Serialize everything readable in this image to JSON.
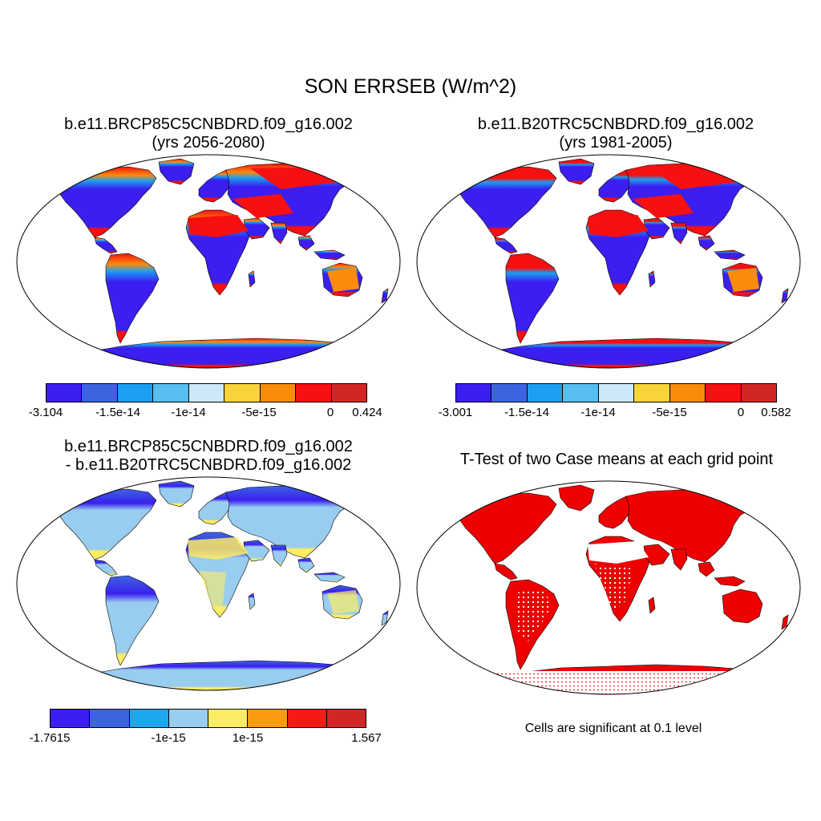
{
  "title": "SON ERRSEB (W/m^2)",
  "panels": {
    "p1": {
      "title_line1": "b.e11.BRCP85C5CNBDRD.f09_g16.002",
      "title_line2": "(yrs 2056-2080)",
      "colorbar": {
        "colors": [
          "#3a1ff0",
          "#3d64e0",
          "#1c9ef2",
          "#56bef0",
          "#cde8f8",
          "#f8d43a",
          "#fa8c0c",
          "#f61010",
          "#d22626"
        ],
        "labels": [
          "-3.104",
          "-1.5e-14",
          "-1e-14",
          "-5e-15",
          "0",
          "0.424"
        ]
      }
    },
    "p2": {
      "title_line1": "b.e11.B20TRC5CNBDRD.f09_g16.002",
      "title_line2": "(yrs 1981-2005)",
      "colorbar": {
        "colors": [
          "#3a1ff0",
          "#3d64e0",
          "#1c9ef2",
          "#56bef0",
          "#cde8f8",
          "#f8d43a",
          "#fa8c0c",
          "#f61010",
          "#d22626"
        ],
        "labels": [
          "-3.001",
          "-1.5e-14",
          "-1e-14",
          "-5e-15",
          "0",
          "0.582"
        ]
      }
    },
    "p3": {
      "title_line1": "b.e11.BRCP85C5CNBDRD.f09_g16.002",
      "title_line2": "- b.e11.B20TRC5CNBDRD.f09_g16.002",
      "colorbar": {
        "colors": [
          "#3a1ff0",
          "#3d64e0",
          "#1ca8f0",
          "#98cdef",
          "#fcec64",
          "#fa9a10",
          "#f61a14",
          "#d22626"
        ],
        "labels": [
          "-1.7615",
          "-1e-15",
          "1e-15",
          "1.567"
        ]
      }
    },
    "p4": {
      "title_line1": "T-Test of two Case means at each grid point",
      "note": "Cells are significant at 0.1 level"
    }
  }
}
